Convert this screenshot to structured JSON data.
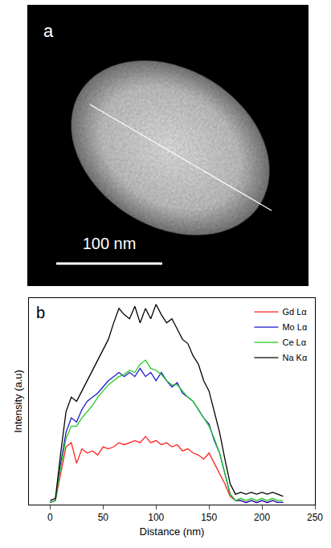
{
  "image_panel": {
    "panel_label": "a",
    "scale_bar_label": "100 nm"
  },
  "chart_data": {
    "type": "line",
    "annotations": [
      {
        "text": "b"
      }
    ],
    "x_label": "Distance (nm)",
    "y_label": "Intensity (a.u)",
    "xlim": [
      -20,
      250
    ],
    "xticks": [
      0,
      50,
      100,
      150,
      200,
      250
    ],
    "ylim": [
      0,
      100
    ],
    "yticks": [],
    "tick_labels": "x",
    "grid": false,
    "legend": "upper right",
    "x": [
      0,
      5,
      10,
      15,
      20,
      25,
      30,
      35,
      40,
      45,
      50,
      55,
      60,
      65,
      70,
      75,
      80,
      85,
      90,
      95,
      100,
      105,
      110,
      115,
      120,
      125,
      130,
      135,
      140,
      145,
      150,
      155,
      160,
      165,
      170,
      175,
      180,
      185,
      190,
      195,
      200,
      205,
      210,
      215,
      220
    ],
    "series": [
      {
        "name": "Gd Lα",
        "color": "#ff2020",
        "values": [
          1,
          2,
          15,
          28,
          30,
          20,
          27,
          25,
          26,
          24,
          28,
          27,
          28,
          30,
          29,
          30,
          31,
          30,
          33,
          30,
          31,
          29,
          30,
          28,
          29,
          26,
          27,
          25,
          24,
          22,
          25,
          20,
          15,
          10,
          4,
          2,
          2,
          1,
          2,
          1,
          2,
          1,
          2,
          1,
          1
        ]
      },
      {
        "name": "Mo Lα",
        "color": "#1a1acc",
        "values": [
          1,
          2,
          20,
          35,
          42,
          40,
          46,
          50,
          52,
          54,
          57,
          60,
          62,
          64,
          62,
          64,
          62,
          66,
          62,
          64,
          60,
          64,
          60,
          57,
          59,
          54,
          52,
          50,
          46,
          42,
          39,
          31,
          25,
          15,
          5,
          2,
          2,
          1,
          2,
          1,
          2,
          1,
          2,
          1,
          1
        ]
      },
      {
        "name": "Ce Lα",
        "color": "#22cc22",
        "values": [
          1,
          2,
          18,
          32,
          38,
          38,
          42,
          45,
          48,
          52,
          55,
          58,
          60,
          62,
          63,
          65,
          64,
          68,
          70,
          66,
          65,
          63,
          60,
          58,
          58,
          55,
          52,
          50,
          46,
          42,
          38,
          32,
          25,
          15,
          5,
          2,
          3,
          2,
          3,
          2,
          3,
          2,
          3,
          2,
          2
        ]
      },
      {
        "name": "Na Kα",
        "color": "#000000",
        "values": [
          2,
          3,
          25,
          45,
          52,
          50,
          55,
          60,
          65,
          70,
          75,
          80,
          88,
          95,
          92,
          90,
          96,
          88,
          95,
          90,
          97,
          92,
          88,
          90,
          85,
          80,
          78,
          72,
          68,
          60,
          55,
          45,
          35,
          22,
          10,
          5,
          6,
          5,
          6,
          5,
          6,
          5,
          6,
          5,
          4
        ]
      }
    ]
  }
}
